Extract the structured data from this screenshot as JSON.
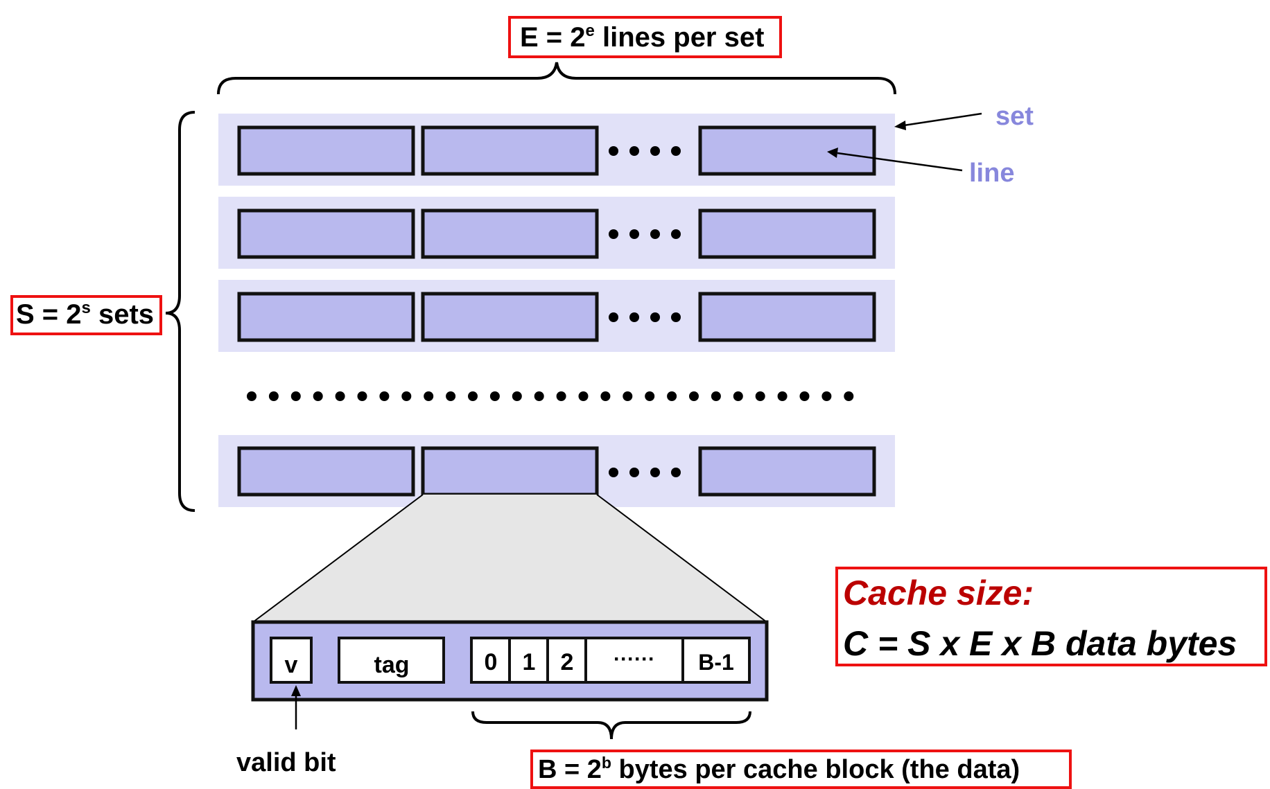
{
  "labels": {
    "e_prefix": "E = 2",
    "e_exp": "e",
    "e_suffix": " lines per set",
    "s_prefix": "S = 2",
    "s_exp": "s",
    "s_suffix": " sets",
    "set": "set",
    "line": "line",
    "valid_bit": "valid bit",
    "b_prefix": "B = 2",
    "b_exp": "b",
    "b_suffix": " bytes per cache block (the data)",
    "cache_size_title": "Cache size:",
    "cache_size_formula": "C = S x E x B data bytes"
  },
  "line_fields": {
    "valid": "v",
    "tag": "tag",
    "bytes": [
      "0",
      "1",
      "2",
      "······",
      "B-1"
    ]
  },
  "colors": {
    "set_bg": "#e1e1f8",
    "line_fill": "#b9b9ee",
    "accent_blue": "#8787dc",
    "red_box": "#ee1111",
    "red_text": "#bb0000",
    "zoom_fill": "#e6e6e6"
  }
}
